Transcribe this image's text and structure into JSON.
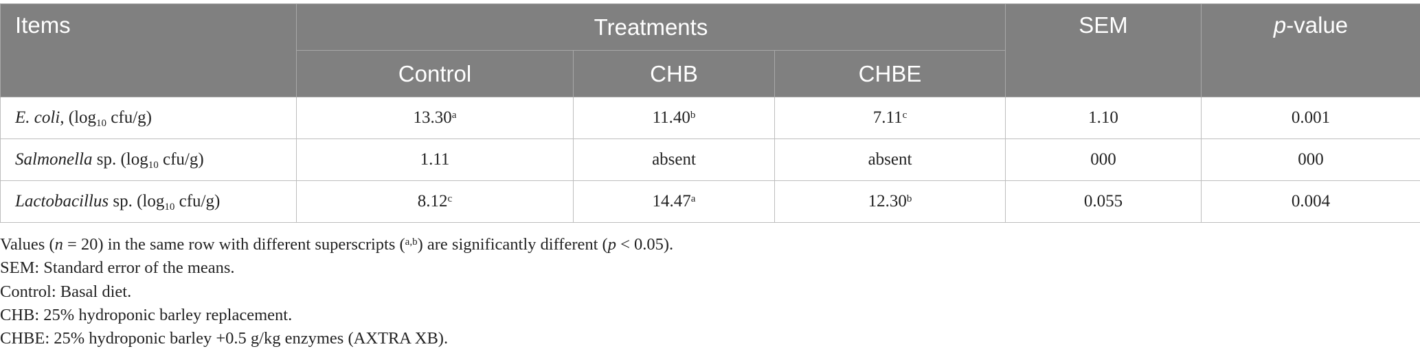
{
  "table": {
    "header": {
      "items": "Items",
      "treatments": "Treatments",
      "control": "Control",
      "chb": "CHB",
      "chbe": "CHBE",
      "sem": "SEM",
      "pvalue": {
        "italic": "p",
        "rest": "-value"
      }
    },
    "rows": [
      {
        "item": {
          "name": "E. coli",
          "before": ", (log",
          "sub": "10",
          "after": " cfu/g)"
        },
        "cells": [
          {
            "text": "13.30",
            "sup": "a"
          },
          {
            "text": "11.40",
            "sup": "b"
          },
          {
            "text": "7.11",
            "sup": "c"
          },
          {
            "text": "1.10"
          },
          {
            "text": "0.001"
          }
        ]
      },
      {
        "item": {
          "name": "Salmonella",
          "before": " sp. (log",
          "sub": "10",
          "after": " cfu/g)"
        },
        "cells": [
          {
            "text": "1.11"
          },
          {
            "text": "absent"
          },
          {
            "text": "absent"
          },
          {
            "text": "000"
          },
          {
            "text": "000"
          }
        ]
      },
      {
        "item": {
          "name": "Lactobacillus",
          "before": " sp. (log",
          "sub": "10",
          "after": " cfu/g)"
        },
        "cells": [
          {
            "text": "8.12",
            "sup": "c"
          },
          {
            "text": "14.47",
            "sup": "a"
          },
          {
            "text": "12.30",
            "sup": "b"
          },
          {
            "text": "0.055"
          },
          {
            "text": "0.004"
          }
        ]
      }
    ]
  },
  "notes": [
    [
      "Values (",
      "n",
      " = 20) in the same row with different superscripts (",
      "a,b",
      ") are significantly different (",
      "p",
      " < 0.05)."
    ],
    "SEM: Standard error of the means.",
    "Control: Basal diet.",
    "CHB: 25% hydroponic barley replacement.",
    "CHBE: 25% hydroponic barley +0.5 g/kg enzymes (AXTRA XB)."
  ]
}
